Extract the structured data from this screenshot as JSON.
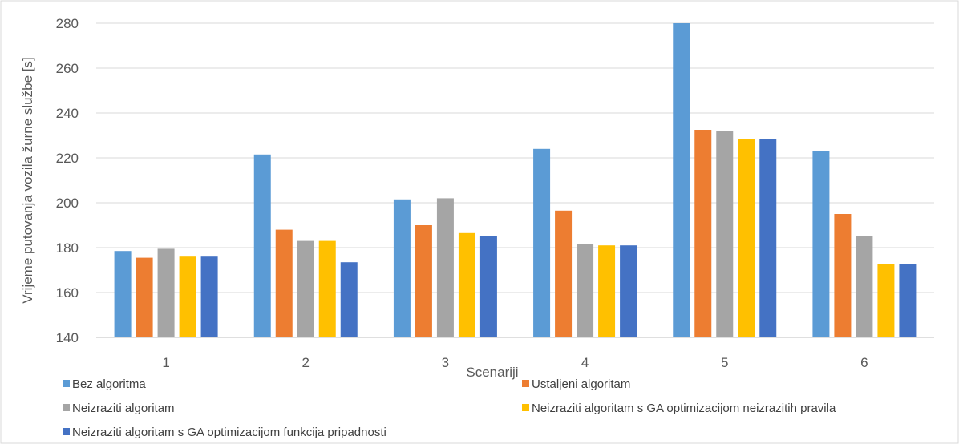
{
  "chart_data": {
    "type": "bar",
    "title": "",
    "xlabel": "Scenariji",
    "ylabel": "Vrijeme putovanja vozila žurne službe [s]",
    "ylim": [
      140,
      280
    ],
    "yticks": [
      140,
      160,
      180,
      200,
      220,
      240,
      260,
      280
    ],
    "grid": true,
    "legend_position": "bottom",
    "categories": [
      "1",
      "2",
      "3",
      "4",
      "5",
      "6"
    ],
    "series": [
      {
        "name": "Bez algoritma",
        "color": "#5b9bd5",
        "values": [
          178.5,
          221.5,
          201.5,
          224,
          280,
          223
        ]
      },
      {
        "name": "Ustaljeni algoritam",
        "color": "#ed7d31",
        "values": [
          175.5,
          188,
          190,
          196.5,
          232.5,
          195
        ]
      },
      {
        "name": "Neizraziti algoritam",
        "color": "#a5a5a5",
        "values": [
          179.5,
          183,
          202,
          181.5,
          232,
          185
        ]
      },
      {
        "name": "Neizraziti algoritam s GA optimizacijom neizrazitih pravila",
        "color": "#ffc000",
        "values": [
          176,
          183,
          186.5,
          181,
          228.5,
          172.5
        ]
      },
      {
        "name": "Neizraziti algoritam s GA optimizacijom funkcija pripadnosti",
        "color": "#4472c4",
        "values": [
          176,
          173.5,
          185,
          181,
          228.5,
          172.5
        ]
      }
    ]
  }
}
